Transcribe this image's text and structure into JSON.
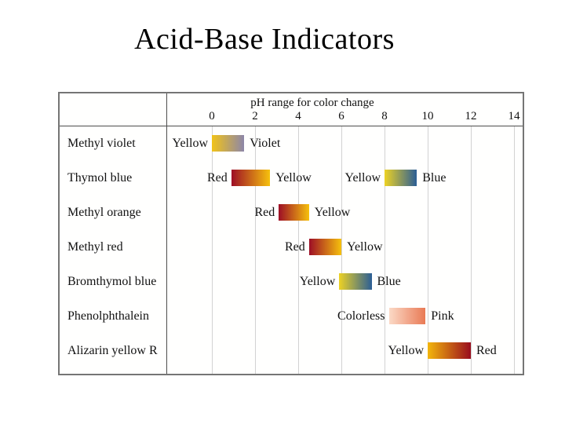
{
  "slide": {
    "title": "Acid-Base Indicators"
  },
  "chart_data": {
    "type": "bar",
    "subtype": "ph-color-change-ranges",
    "title": "pH range for color change",
    "xlabel": "pH",
    "xlim": [
      0,
      14
    ],
    "x_ticks": [
      0,
      2,
      4,
      6,
      8,
      10,
      12,
      14
    ],
    "grid": true,
    "rows": [
      {
        "indicator": "Methyl violet",
        "segments": [
          {
            "ph": [
              0.0,
              1.5
            ],
            "from_label": "Yellow",
            "to_label": "Violet",
            "from_color": "#f1c319",
            "to_color": "#8d86a8"
          }
        ]
      },
      {
        "indicator": "Thymol blue",
        "segments": [
          {
            "ph": [
              0.9,
              2.7
            ],
            "from_label": "Red",
            "to_label": "Yellow",
            "from_color": "#9d0e26",
            "to_color": "#f6c10d"
          },
          {
            "ph": [
              8.0,
              9.5
            ],
            "from_label": "Yellow",
            "to_label": "Blue",
            "from_color": "#edd224",
            "to_color": "#2b5e95"
          }
        ]
      },
      {
        "indicator": "Methyl orange",
        "segments": [
          {
            "ph": [
              3.1,
              4.5
            ],
            "from_label": "Red",
            "to_label": "Yellow",
            "from_color": "#9d0e26",
            "to_color": "#f6c10d"
          }
        ]
      },
      {
        "indicator": "Methyl red",
        "segments": [
          {
            "ph": [
              4.5,
              6.0
            ],
            "from_label": "Red",
            "to_label": "Yellow",
            "from_color": "#9d0e26",
            "to_color": "#f6c10d"
          }
        ]
      },
      {
        "indicator": "Bromthymol blue",
        "segments": [
          {
            "ph": [
              5.9,
              7.4
            ],
            "from_label": "Yellow",
            "to_label": "Blue",
            "from_color": "#edd224",
            "to_color": "#2b5e95"
          }
        ]
      },
      {
        "indicator": "Phenolphthalein",
        "segments": [
          {
            "ph": [
              8.2,
              9.9
            ],
            "from_label": "Colorless",
            "to_label": "Pink",
            "from_color": "#fbd9c6",
            "to_color": "#e97a55"
          }
        ]
      },
      {
        "indicator": "Alizarin yellow R",
        "segments": [
          {
            "ph": [
              10.0,
              12.0
            ],
            "from_label": "Yellow",
            "to_label": "Red",
            "from_color": "#f3b60c",
            "to_color": "#990c1d"
          }
        ]
      }
    ]
  },
  "colors": {
    "table_border": "#757575",
    "inner_line": "#4d4d4d",
    "gridline": "#d2d2d2",
    "background": "#ffffff"
  }
}
